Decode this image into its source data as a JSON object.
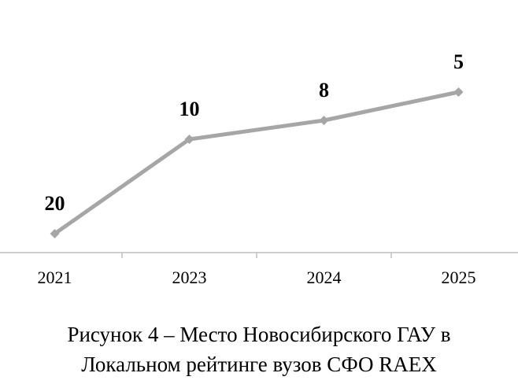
{
  "chart_data": {
    "type": "line",
    "categories": [
      "2021",
      "2023",
      "2024",
      "2025"
    ],
    "values": [
      20,
      10,
      8,
      5
    ],
    "color": "#a6a6a6",
    "ylim": [
      22,
      0
    ],
    "caption": [
      "Рисунок 4 – Место Новосибирского ГАУ в",
      "Локальном рейтинге вузов СФО RAEX"
    ]
  }
}
